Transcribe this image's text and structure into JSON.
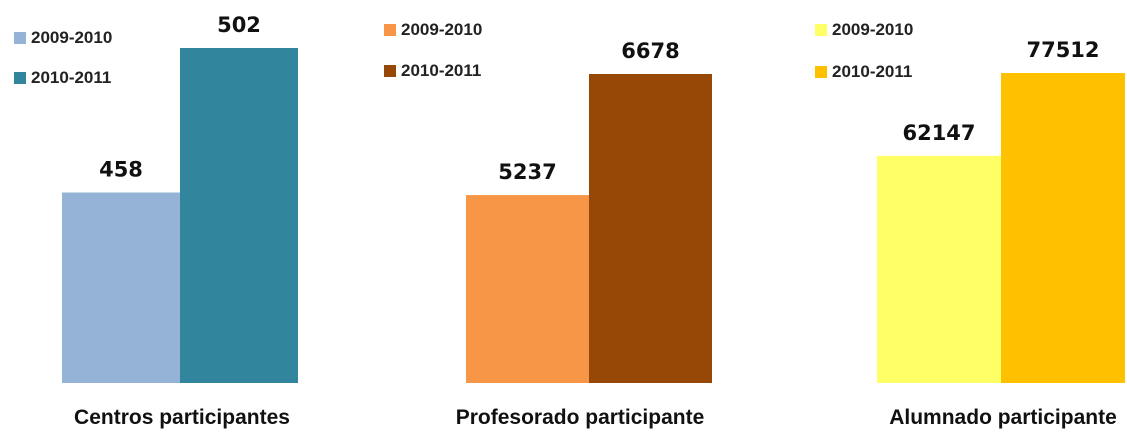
{
  "chart_data": [
    {
      "type": "bar",
      "categories": [
        "Centros participantes"
      ],
      "series": [
        {
          "name": "2009-2010",
          "values": [
            458
          ],
          "color": "#95B3D7"
        },
        {
          "name": "2010-2011",
          "values": [
            502
          ],
          "color": "#31859C"
        }
      ],
      "ylim": [
        400,
        510
      ],
      "legend": "top-left",
      "grid": false
    },
    {
      "type": "bar",
      "categories": [
        "Profesorado participante"
      ],
      "series": [
        {
          "name": "2009-2010",
          "values": [
            5237
          ],
          "color": "#F79646"
        },
        {
          "name": "2010-2011",
          "values": [
            6678
          ],
          "color": "#974806"
        }
      ],
      "ylim": [
        3000,
        6800
      ],
      "legend": "top-left",
      "grid": false
    },
    {
      "type": "bar",
      "categories": [
        "Alumnado participante"
      ],
      "series": [
        {
          "name": "2009-2010",
          "values": [
            62147
          ],
          "color": "#FFFF66"
        },
        {
          "name": "2010-2011",
          "values": [
            77512
          ],
          "color": "#FFC000"
        }
      ],
      "ylim": [
        20000,
        79000
      ],
      "legend": "top-left",
      "grid": false
    }
  ]
}
